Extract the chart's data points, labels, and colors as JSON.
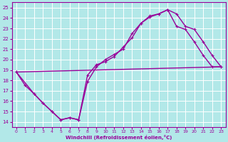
{
  "xlabel": "Windchill (Refroidissement éolien,°C)",
  "ylabel": "",
  "bg_color": "#b2e8e8",
  "line_color": "#990099",
  "grid_color": "#ffffff",
  "xlim": [
    -0.5,
    23.5
  ],
  "ylim": [
    13.5,
    25.5
  ],
  "xticks": [
    0,
    1,
    2,
    3,
    4,
    5,
    6,
    7,
    8,
    9,
    10,
    11,
    12,
    13,
    14,
    15,
    16,
    17,
    18,
    19,
    20,
    21,
    22,
    23
  ],
  "yticks": [
    14,
    15,
    16,
    17,
    18,
    19,
    20,
    21,
    22,
    23,
    24,
    25
  ],
  "line1_x": [
    0,
    1,
    2,
    3,
    4,
    5,
    6,
    7,
    8,
    9,
    10,
    11,
    12,
    13,
    14,
    15,
    16,
    17,
    18,
    19,
    20,
    21,
    22,
    23
  ],
  "line1_y": [
    18.8,
    17.5,
    16.7,
    15.8,
    15.0,
    14.2,
    14.4,
    14.2,
    17.9,
    19.3,
    20.0,
    20.5,
    21.0,
    22.5,
    23.5,
    24.1,
    24.4,
    24.8,
    24.4,
    23.2,
    22.9,
    21.7,
    20.4,
    19.3
  ],
  "line2_x": [
    0,
    2,
    3,
    4,
    5,
    6,
    7,
    8,
    9,
    10,
    11,
    12,
    13,
    14,
    15,
    16,
    17,
    18,
    19,
    20,
    21,
    22,
    23
  ],
  "line2_y": [
    18.8,
    16.7,
    15.8,
    15.0,
    14.2,
    14.4,
    14.2,
    18.5,
    19.5,
    19.8,
    20.3,
    21.2,
    22.1,
    23.5,
    24.2,
    24.4,
    24.8,
    23.2,
    22.9,
    21.7,
    20.4,
    19.3,
    19.3
  ],
  "line3_x": [
    0,
    23
  ],
  "line3_y": [
    18.8,
    19.3
  ],
  "marker": "+",
  "markersize": 3.5,
  "linewidth": 1.0
}
